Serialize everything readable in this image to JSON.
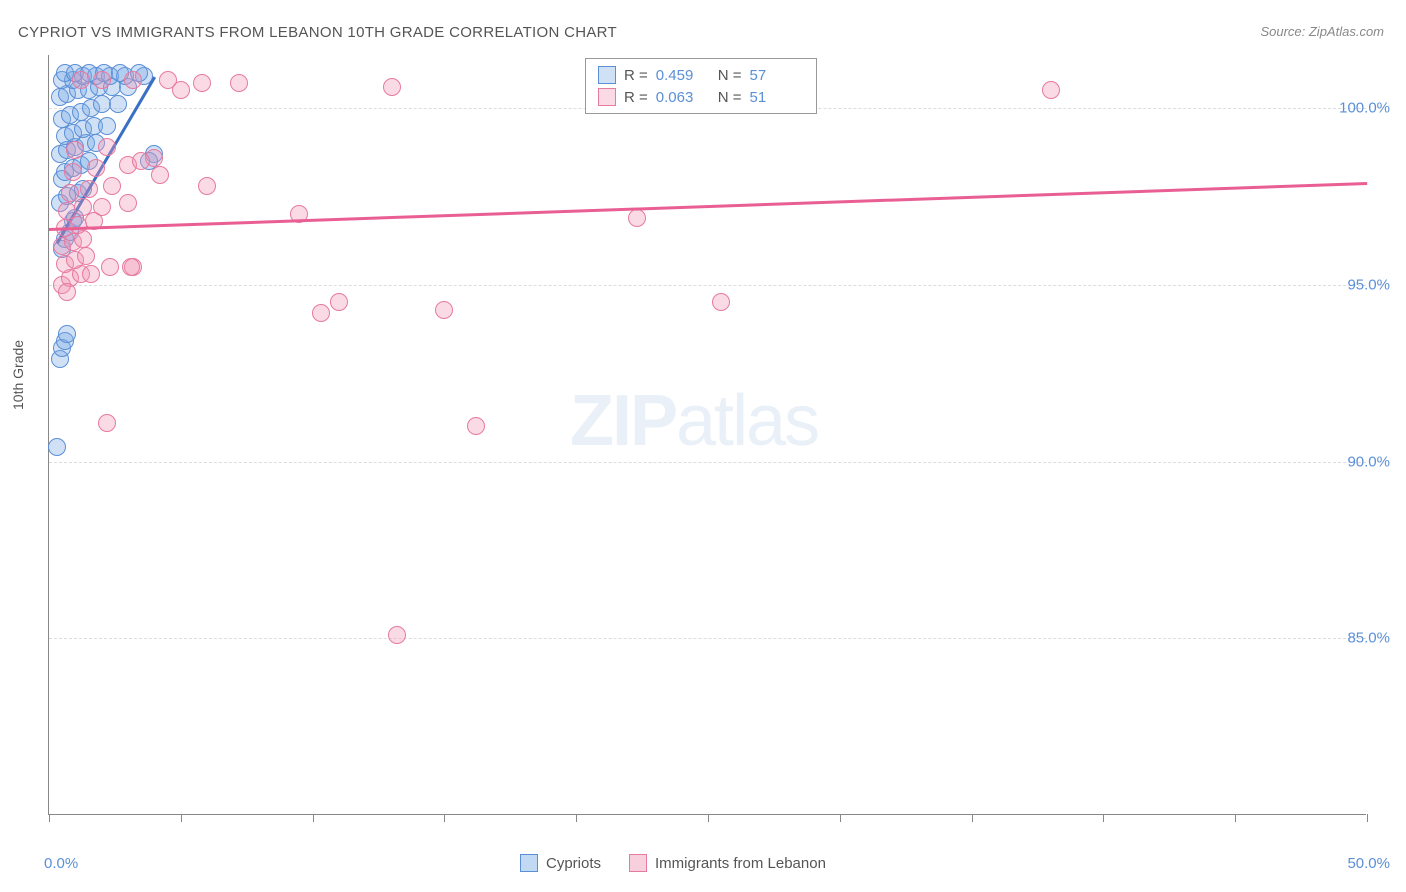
{
  "title": "CYPRIOT VS IMMIGRANTS FROM LEBANON 10TH GRADE CORRELATION CHART",
  "source": "Source: ZipAtlas.com",
  "ylabel": "10th Grade",
  "watermark_bold": "ZIP",
  "watermark_rest": "atlas",
  "chart": {
    "type": "scatter",
    "xlim": [
      0,
      50
    ],
    "ylim": [
      80,
      101.5
    ],
    "x_ticks_minor": [
      0,
      5,
      10,
      15,
      20,
      25,
      30,
      35,
      40,
      45,
      50
    ],
    "x_labels": [
      {
        "v": 0,
        "t": "0.0%"
      },
      {
        "v": 50,
        "t": "50.0%"
      }
    ],
    "y_gridlines": [
      85,
      90,
      95,
      100
    ],
    "y_labels": [
      {
        "v": 85,
        "t": "85.0%"
      },
      {
        "v": 90,
        "t": "90.0%"
      },
      {
        "v": 95,
        "t": "95.0%"
      },
      {
        "v": 100,
        "t": "100.0%"
      }
    ],
    "background_color": "#ffffff",
    "grid_color": "#dddddd",
    "axis_color": "#888888",
    "marker_radius": 9,
    "marker_stroke_width": 1.5,
    "trend_width": 3,
    "series": [
      {
        "name": "Cypriots",
        "fill": "rgba(120,170,230,0.35)",
        "stroke": "#5b8fd6",
        "R": "0.459",
        "N": "57",
        "trend": {
          "x1": 0.3,
          "y1": 96.2,
          "x2": 4.0,
          "y2": 100.9,
          "color": "#3a6fc4"
        },
        "points": [
          [
            0.3,
            90.4
          ],
          [
            0.4,
            92.9
          ],
          [
            0.5,
            93.2
          ],
          [
            0.6,
            93.4
          ],
          [
            0.7,
            93.6
          ],
          [
            0.5,
            96.0
          ],
          [
            0.6,
            96.3
          ],
          [
            0.8,
            96.5
          ],
          [
            0.9,
            96.8
          ],
          [
            1.0,
            96.9
          ],
          [
            0.4,
            97.3
          ],
          [
            0.7,
            97.5
          ],
          [
            1.1,
            97.6
          ],
          [
            1.3,
            97.7
          ],
          [
            0.5,
            98.0
          ],
          [
            0.6,
            98.2
          ],
          [
            0.9,
            98.3
          ],
          [
            1.2,
            98.4
          ],
          [
            1.5,
            98.5
          ],
          [
            0.4,
            98.7
          ],
          [
            0.7,
            98.8
          ],
          [
            1.0,
            98.9
          ],
          [
            1.4,
            99.0
          ],
          [
            1.8,
            99.0
          ],
          [
            0.6,
            99.2
          ],
          [
            0.9,
            99.3
          ],
          [
            1.3,
            99.4
          ],
          [
            1.7,
            99.5
          ],
          [
            2.2,
            99.5
          ],
          [
            0.5,
            99.7
          ],
          [
            0.8,
            99.8
          ],
          [
            1.2,
            99.9
          ],
          [
            1.6,
            100.0
          ],
          [
            2.0,
            100.1
          ],
          [
            2.6,
            100.1
          ],
          [
            0.4,
            100.3
          ],
          [
            0.7,
            100.4
          ],
          [
            1.1,
            100.5
          ],
          [
            1.5,
            100.5
          ],
          [
            1.9,
            100.6
          ],
          [
            2.4,
            100.6
          ],
          [
            3.0,
            100.6
          ],
          [
            0.5,
            100.8
          ],
          [
            0.9,
            100.8
          ],
          [
            1.3,
            100.9
          ],
          [
            1.8,
            100.9
          ],
          [
            2.3,
            100.9
          ],
          [
            2.9,
            100.9
          ],
          [
            3.6,
            100.9
          ],
          [
            0.6,
            101.0
          ],
          [
            1.0,
            101.0
          ],
          [
            1.5,
            101.0
          ],
          [
            2.1,
            101.0
          ],
          [
            2.7,
            101.0
          ],
          [
            3.4,
            101.0
          ],
          [
            4.0,
            98.7
          ],
          [
            3.8,
            98.5
          ]
        ]
      },
      {
        "name": "Immigrants from Lebanon",
        "fill": "rgba(240,150,180,0.35)",
        "stroke": "#e67aa0",
        "R": "0.063",
        "N": "51",
        "trend": {
          "x1": 0.0,
          "y1": 96.6,
          "x2": 50.0,
          "y2": 97.9,
          "color": "#e95f94"
        },
        "points": [
          [
            0.5,
            95.0
          ],
          [
            0.8,
            95.2
          ],
          [
            1.2,
            95.3
          ],
          [
            1.6,
            95.3
          ],
          [
            0.6,
            95.6
          ],
          [
            1.0,
            95.7
          ],
          [
            1.4,
            95.8
          ],
          [
            0.5,
            96.1
          ],
          [
            0.9,
            96.2
          ],
          [
            1.3,
            96.3
          ],
          [
            2.3,
            95.5
          ],
          [
            3.2,
            95.5
          ],
          [
            0.6,
            96.6
          ],
          [
            1.1,
            96.7
          ],
          [
            1.7,
            96.8
          ],
          [
            0.7,
            97.1
          ],
          [
            1.3,
            97.2
          ],
          [
            2.0,
            97.2
          ],
          [
            3.0,
            97.3
          ],
          [
            0.8,
            97.6
          ],
          [
            1.5,
            97.7
          ],
          [
            2.4,
            97.8
          ],
          [
            4.2,
            98.1
          ],
          [
            6.0,
            97.8
          ],
          [
            0.9,
            98.2
          ],
          [
            1.8,
            98.3
          ],
          [
            3.0,
            98.4
          ],
          [
            1.0,
            98.8
          ],
          [
            2.2,
            98.9
          ],
          [
            4.0,
            98.6
          ],
          [
            3.5,
            98.5
          ],
          [
            1.2,
            100.8
          ],
          [
            2.0,
            100.8
          ],
          [
            3.2,
            100.8
          ],
          [
            4.5,
            100.8
          ],
          [
            5.0,
            100.5
          ],
          [
            5.8,
            100.7
          ],
          [
            7.2,
            100.7
          ],
          [
            2.2,
            91.1
          ],
          [
            3.1,
            95.5
          ],
          [
            9.5,
            97.0
          ],
          [
            10.3,
            94.2
          ],
          [
            11.0,
            94.5
          ],
          [
            13.0,
            100.6
          ],
          [
            15.0,
            94.3
          ],
          [
            16.2,
            91.0
          ],
          [
            22.3,
            96.9
          ],
          [
            25.5,
            94.5
          ],
          [
            13.2,
            85.1
          ],
          [
            38.0,
            100.5
          ],
          [
            0.7,
            94.8
          ]
        ]
      }
    ]
  },
  "legend_top_labels": {
    "R": "R =",
    "N": "N ="
  },
  "legend_bottom": [
    {
      "label": "Cypriots",
      "fill": "rgba(120,170,230,0.45)",
      "stroke": "#5b8fd6"
    },
    {
      "label": "Immigrants from Lebanon",
      "fill": "rgba(240,150,180,0.45)",
      "stroke": "#e67aa0"
    }
  ],
  "colors": {
    "title": "#555555",
    "label_blue": "#5b8fd6"
  },
  "fonts": {
    "title_size": 15,
    "axis_label_size": 15,
    "legend_size": 15
  }
}
